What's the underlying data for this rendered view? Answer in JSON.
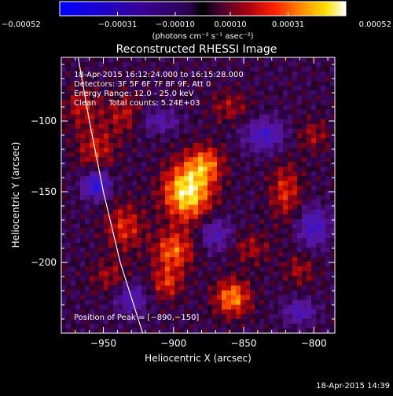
{
  "chart_data": {
    "type": "heatmap",
    "title": "Reconstructed RHESSI Image",
    "xlabel": "Heliocentric X (arcsec)",
    "ylabel": "Heliocentric Y (arcsec)",
    "xlim": [
      -980,
      -785
    ],
    "ylim": [
      -250,
      -55
    ],
    "x_ticks": [
      -950,
      -900,
      -850,
      -800
    ],
    "y_ticks": [
      -100,
      -150,
      -200
    ],
    "x_tick_labels": [
      "−950",
      "−900",
      "−850",
      "−800"
    ],
    "y_tick_labels": [
      "−100",
      "−150",
      "−200"
    ],
    "colorbar": {
      "range": [
        -0.00052,
        0.00052
      ],
      "ticks": [
        -0.00052,
        -0.00031,
        -0.0001,
        0.0001,
        0.00031,
        0.00052
      ],
      "tick_labels": [
        "−0.00052",
        "−0.00031",
        "−0.00010",
        "0.00010",
        "0.00031",
        "0.00052"
      ],
      "unit_label": "(photons cm⁻² s⁻¹ asec⁻²)"
    },
    "annotations": [
      "18-Apr-2015 16:12:24.000 to 16:15:28.000",
      "Detectors: 3F 5F 6F 7F 8F 9F, Att 0",
      "Energy Range: 12.0 - 25.0 keV",
      "Clean     Total counts: 5.24E+03"
    ],
    "peak_label": "Position of Peak = [−890,−150]",
    "peak": [
      -890,
      -150
    ],
    "sources": [
      {
        "x": -890,
        "y": -150,
        "amp": 1.0,
        "sx": 12,
        "sy": 14
      },
      {
        "x": -877,
        "y": -130,
        "amp": 0.55,
        "sx": 9,
        "sy": 9
      },
      {
        "x": -900,
        "y": -192,
        "amp": 0.6,
        "sx": 10,
        "sy": 10
      },
      {
        "x": -905,
        "y": -215,
        "amp": 0.45,
        "sx": 8,
        "sy": 8
      },
      {
        "x": -858,
        "y": -225,
        "amp": 0.7,
        "sx": 9,
        "sy": 9
      },
      {
        "x": -935,
        "y": -175,
        "amp": 0.45,
        "sx": 10,
        "sy": 12
      },
      {
        "x": -955,
        "y": -120,
        "amp": 0.4,
        "sx": 10,
        "sy": 12
      },
      {
        "x": -965,
        "y": -90,
        "amp": 0.35,
        "sx": 9,
        "sy": 10
      },
      {
        "x": -935,
        "y": -95,
        "amp": 0.35,
        "sx": 9,
        "sy": 10
      },
      {
        "x": -820,
        "y": -150,
        "amp": 0.45,
        "sx": 8,
        "sy": 14
      },
      {
        "x": -800,
        "y": -110,
        "amp": 0.3,
        "sx": 8,
        "sy": 8
      },
      {
        "x": -945,
        "y": -210,
        "amp": 0.3,
        "sx": 10,
        "sy": 8
      },
      {
        "x": -845,
        "y": -190,
        "amp": 0.3,
        "sx": 10,
        "sy": 8
      },
      {
        "x": -810,
        "y": -205,
        "amp": 0.3,
        "sx": 8,
        "sy": 8
      },
      {
        "x": -860,
        "y": -90,
        "amp": 0.3,
        "sx": 10,
        "sy": 8
      }
    ],
    "negatives": [
      {
        "x": -955,
        "y": -145,
        "amp": 0.8,
        "sx": 7,
        "sy": 7
      },
      {
        "x": -835,
        "y": -110,
        "amp": 0.6,
        "sx": 10,
        "sy": 8
      },
      {
        "x": -800,
        "y": -175,
        "amp": 0.6,
        "sx": 8,
        "sy": 10
      },
      {
        "x": -870,
        "y": -180,
        "amp": 0.5,
        "sx": 8,
        "sy": 8
      },
      {
        "x": -930,
        "y": -225,
        "amp": 0.5,
        "sx": 8,
        "sy": 8
      },
      {
        "x": -910,
        "y": -100,
        "amp": 0.4,
        "sx": 10,
        "sy": 6
      },
      {
        "x": -810,
        "y": -235,
        "amp": 0.5,
        "sx": 8,
        "sy": 6
      }
    ],
    "limb_curve": [
      [
        -968,
        -55
      ],
      [
        -960,
        -100
      ],
      [
        -950,
        -150
      ],
      [
        -938,
        -200
      ],
      [
        -922,
        -250
      ]
    ]
  },
  "footer": {
    "timestamp": "18-Apr-2015 14:39"
  }
}
